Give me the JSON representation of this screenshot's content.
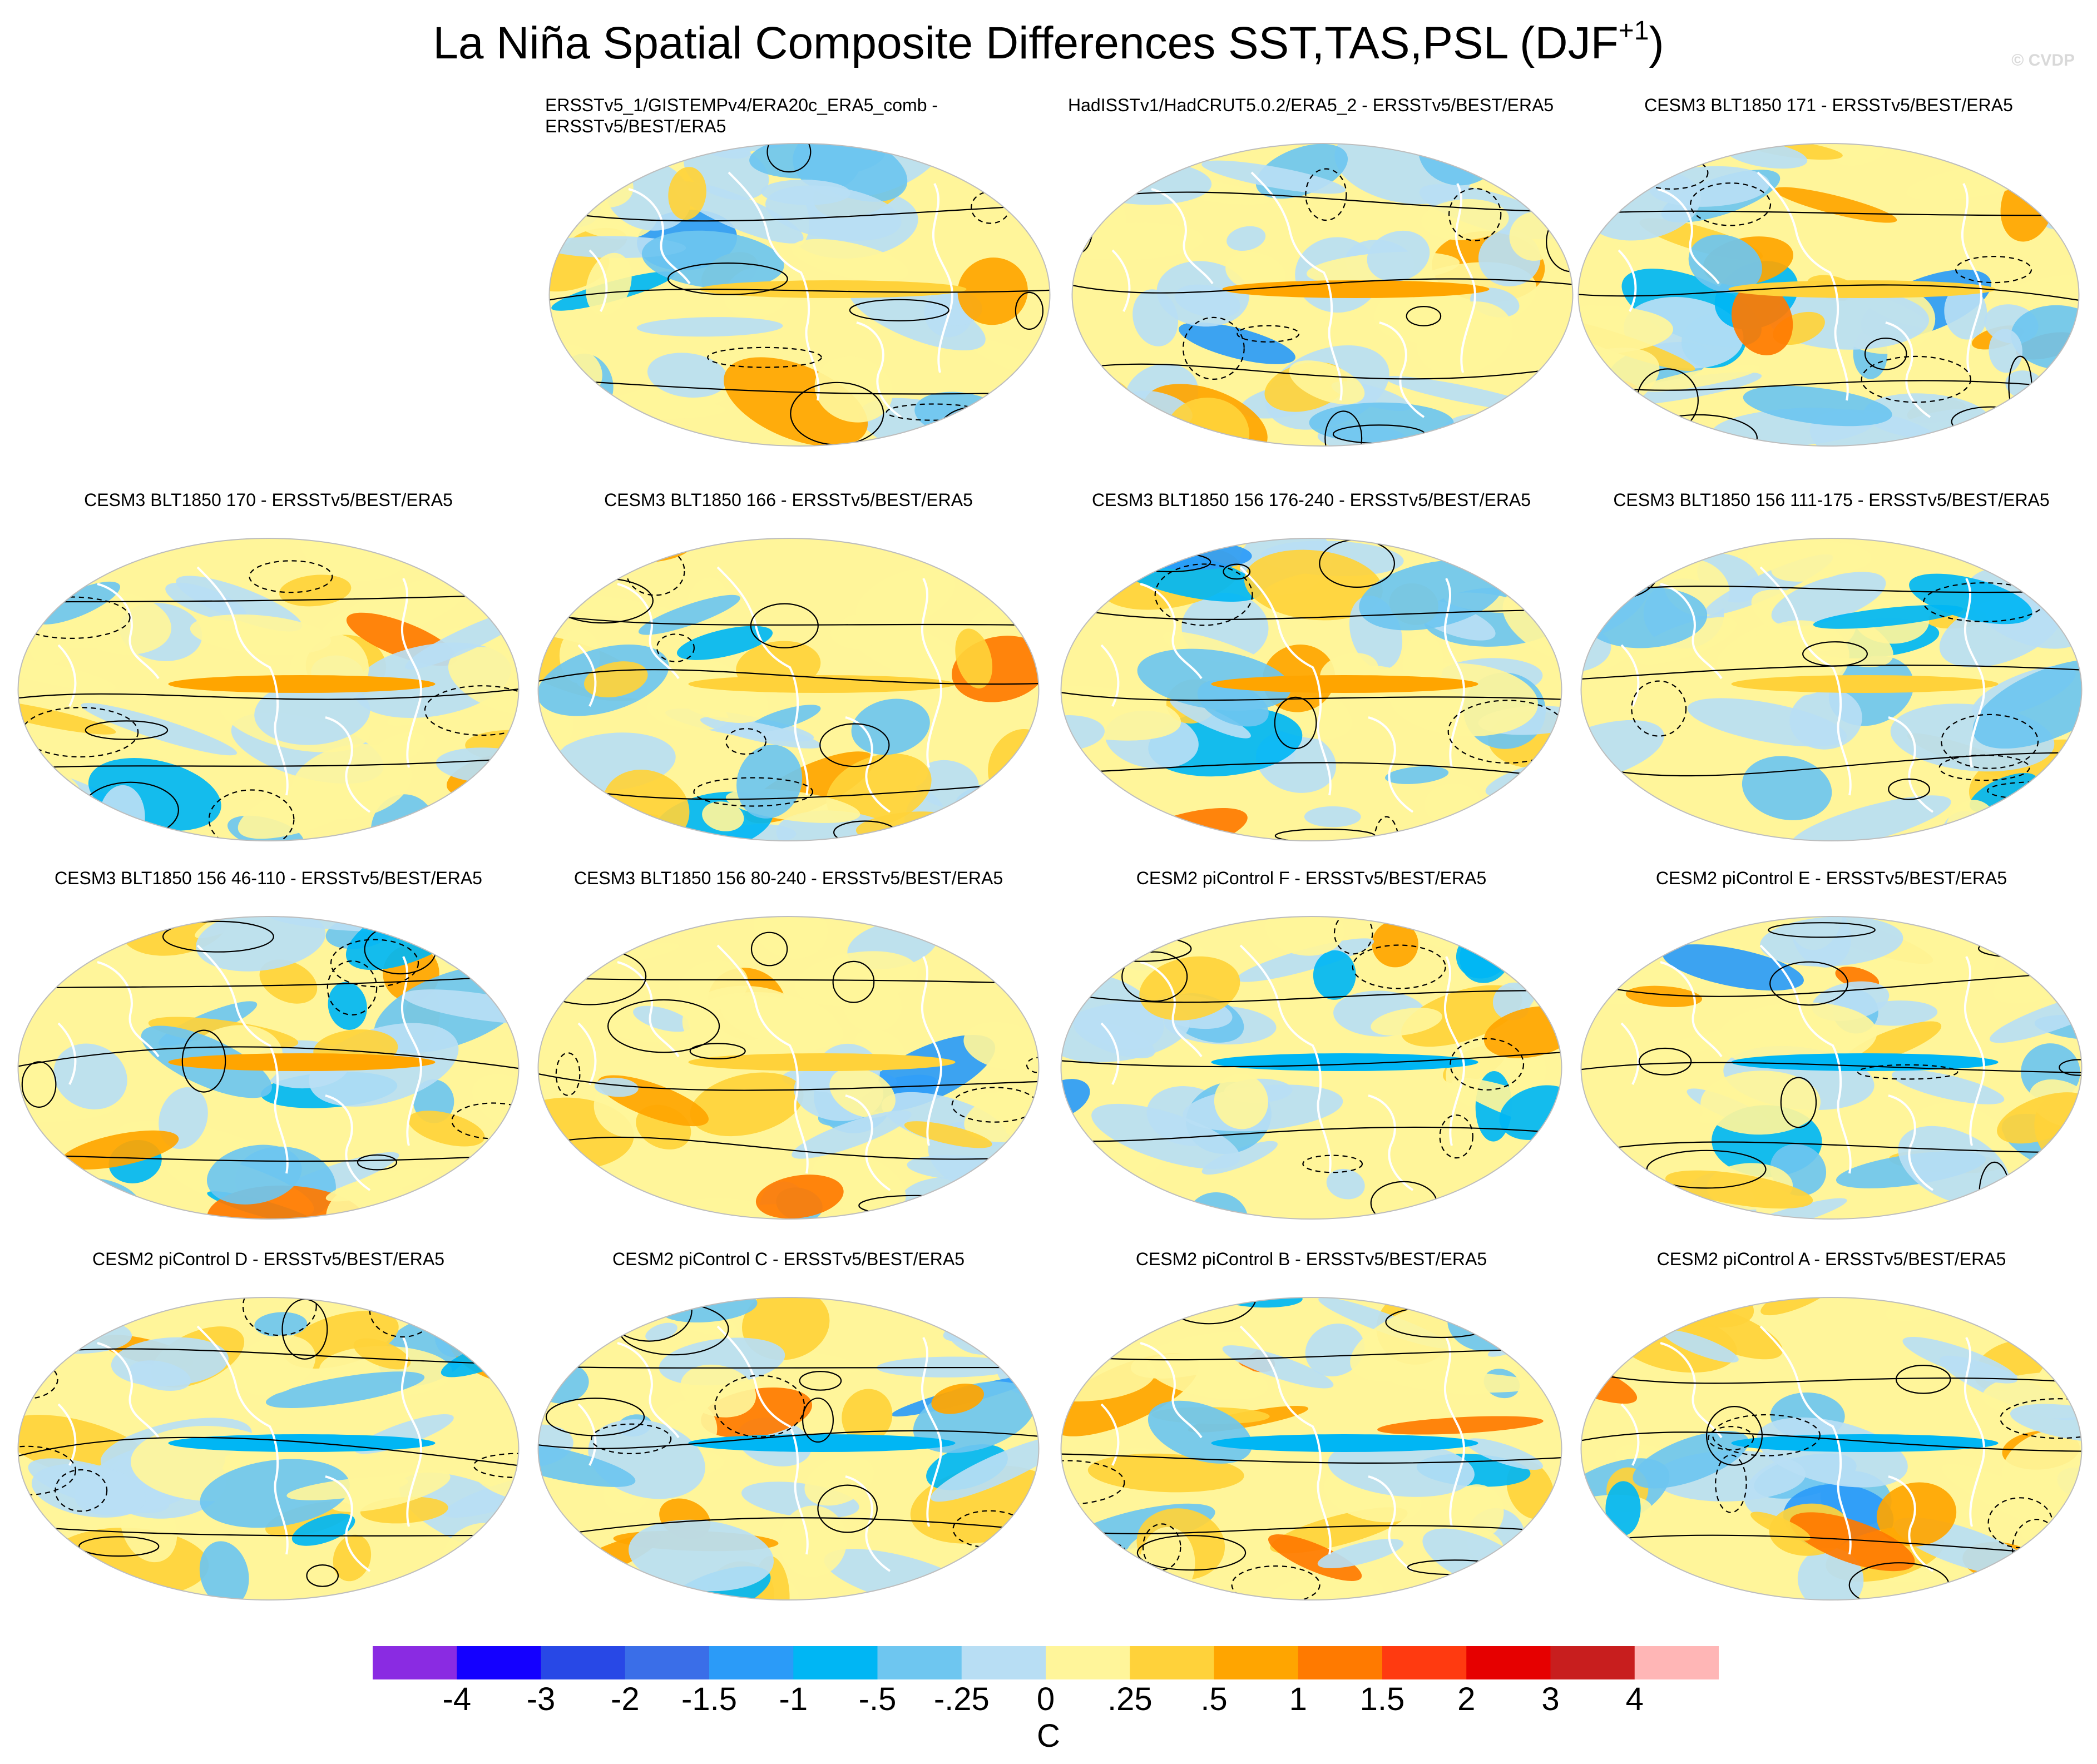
{
  "title": {
    "main": "La Niña Spatial Composite Differences SST,TAS,PSL (DJF",
    "superscript": "+1",
    "close": ")"
  },
  "credit": "© CVDP",
  "panels": [
    {
      "id": "p1",
      "label": "ERSSTv5_1/GISTEMPv4/ERA20c_ERA5_comb - ERSSTv5/BEST/ERA5",
      "wrap": true
    },
    {
      "id": "p2",
      "label": "HadISSTv1/HadCRUT5.0.2/ERA5_2 - ERSSTv5/BEST/ERA5",
      "wrap": true
    },
    {
      "id": "p3",
      "label": "CESM3 BLT1850 171 - ERSSTv5/BEST/ERA5"
    },
    {
      "id": "p4",
      "label": "CESM3 BLT1850 170 - ERSSTv5/BEST/ERA5"
    },
    {
      "id": "p5",
      "label": "CESM3 BLT1850 166 - ERSSTv5/BEST/ERA5"
    },
    {
      "id": "p6",
      "label": "CESM3 BLT1850 156 176-240 - ERSSTv5/BEST/ERA5"
    },
    {
      "id": "p7",
      "label": "CESM3 BLT1850 156 111-175 - ERSSTv5/BEST/ERA5"
    },
    {
      "id": "p8",
      "label": "CESM3 BLT1850 156 46-110 - ERSSTv5/BEST/ERA5"
    },
    {
      "id": "p9",
      "label": "CESM3 BLT1850 156 80-240 - ERSSTv5/BEST/ERA5"
    },
    {
      "id": "p10",
      "label": "CESM2 piControl F - ERSSTv5/BEST/ERA5"
    },
    {
      "id": "p11",
      "label": "CESM2 piControl E - ERSSTv5/BEST/ERA5"
    },
    {
      "id": "p12",
      "label": "CESM2 piControl D - ERSSTv5/BEST/ERA5"
    },
    {
      "id": "p13",
      "label": "CESM2 piControl C - ERSSTv5/BEST/ERA5"
    },
    {
      "id": "p14",
      "label": "CESM2 piControl B - ERSSTv5/BEST/ERA5"
    },
    {
      "id": "p15",
      "label": "CESM2 piControl A - ERSSTv5/BEST/ERA5"
    }
  ],
  "colorbar": {
    "unit": "C",
    "ticks": [
      "-4",
      "-3",
      "-2",
      "-1.5",
      "-1",
      "-.5",
      "-.25",
      "0",
      ".25",
      ".5",
      "1",
      "1.5",
      "2",
      "3",
      "4"
    ],
    "colors": [
      "#8a2be2",
      "#1400ff",
      "#2848e6",
      "#3a6ee8",
      "#2b9bf8",
      "#00b6f4",
      "#6ec6f0",
      "#b8def4",
      "#fff59a",
      "#ffd23a",
      "#ffa500",
      "#ff7a00",
      "#ff3a10",
      "#e60000",
      "#c81e1e",
      "#ffb6b6"
    ]
  }
}
